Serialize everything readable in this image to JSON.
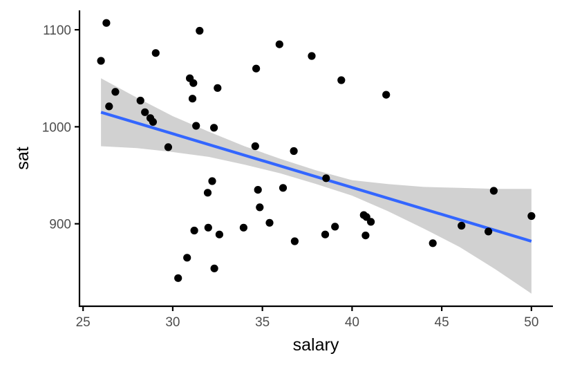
{
  "chart_data": {
    "type": "scatter",
    "xlabel": "salary",
    "ylabel": "sat",
    "xlim": [
      24.8,
      51.2
    ],
    "ylim": [
      815,
      1120
    ],
    "x_ticks": [
      25,
      30,
      35,
      40,
      45,
      50
    ],
    "y_ticks": [
      900,
      1000,
      1100
    ],
    "grid": false,
    "colors": {
      "points": "#000000",
      "line": "#3366FF",
      "ribbon": "#999999",
      "axis": "#000000",
      "tick_label": "#4d4d4d"
    },
    "points": [
      {
        "x": 26.0,
        "y": 1068
      },
      {
        "x": 26.3,
        "y": 1107
      },
      {
        "x": 26.45,
        "y": 1021
      },
      {
        "x": 26.8,
        "y": 1036
      },
      {
        "x": 28.2,
        "y": 1027
      },
      {
        "x": 28.45,
        "y": 1015
      },
      {
        "x": 28.75,
        "y": 1009
      },
      {
        "x": 28.9,
        "y": 1005
      },
      {
        "x": 29.05,
        "y": 1076
      },
      {
        "x": 29.75,
        "y": 979
      },
      {
        "x": 30.3,
        "y": 844
      },
      {
        "x": 30.8,
        "y": 865
      },
      {
        "x": 30.95,
        "y": 1050
      },
      {
        "x": 31.1,
        "y": 1029
      },
      {
        "x": 31.15,
        "y": 1045
      },
      {
        "x": 31.2,
        "y": 893
      },
      {
        "x": 31.3,
        "y": 1001
      },
      {
        "x": 31.5,
        "y": 1099
      },
      {
        "x": 31.95,
        "y": 932
      },
      {
        "x": 31.98,
        "y": 896
      },
      {
        "x": 32.2,
        "y": 944
      },
      {
        "x": 32.3,
        "y": 999
      },
      {
        "x": 32.32,
        "y": 854
      },
      {
        "x": 32.5,
        "y": 1040
      },
      {
        "x": 32.6,
        "y": 889
      },
      {
        "x": 33.95,
        "y": 896
      },
      {
        "x": 34.6,
        "y": 980
      },
      {
        "x": 34.65,
        "y": 1060
      },
      {
        "x": 34.75,
        "y": 935
      },
      {
        "x": 34.85,
        "y": 917
      },
      {
        "x": 35.4,
        "y": 901
      },
      {
        "x": 35.95,
        "y": 1085
      },
      {
        "x": 36.15,
        "y": 937
      },
      {
        "x": 36.75,
        "y": 975
      },
      {
        "x": 36.8,
        "y": 882
      },
      {
        "x": 37.75,
        "y": 1073
      },
      {
        "x": 38.5,
        "y": 889
      },
      {
        "x": 38.55,
        "y": 947
      },
      {
        "x": 39.05,
        "y": 897
      },
      {
        "x": 39.4,
        "y": 1048
      },
      {
        "x": 40.65,
        "y": 909
      },
      {
        "x": 40.75,
        "y": 888
      },
      {
        "x": 40.8,
        "y": 907
      },
      {
        "x": 41.05,
        "y": 902
      },
      {
        "x": 41.9,
        "y": 1033
      },
      {
        "x": 44.5,
        "y": 880
      },
      {
        "x": 46.1,
        "y": 898
      },
      {
        "x": 47.6,
        "y": 892
      },
      {
        "x": 47.9,
        "y": 934
      },
      {
        "x": 50.0,
        "y": 908
      }
    ],
    "fit_line": {
      "method": "linear",
      "x": [
        26.0,
        50.0
      ],
      "y": [
        1015,
        882
      ]
    },
    "confidence_band": {
      "x": [
        26,
        28,
        30,
        32,
        34,
        36,
        38,
        40,
        42,
        44,
        46,
        48,
        50
      ],
      "upper": [
        1050,
        1030,
        1011,
        995,
        980,
        967,
        955,
        945,
        941,
        938,
        937,
        936,
        936
      ],
      "lower": [
        980,
        978,
        974,
        969,
        961,
        952,
        941,
        929,
        913,
        895,
        876,
        853,
        828
      ]
    }
  }
}
